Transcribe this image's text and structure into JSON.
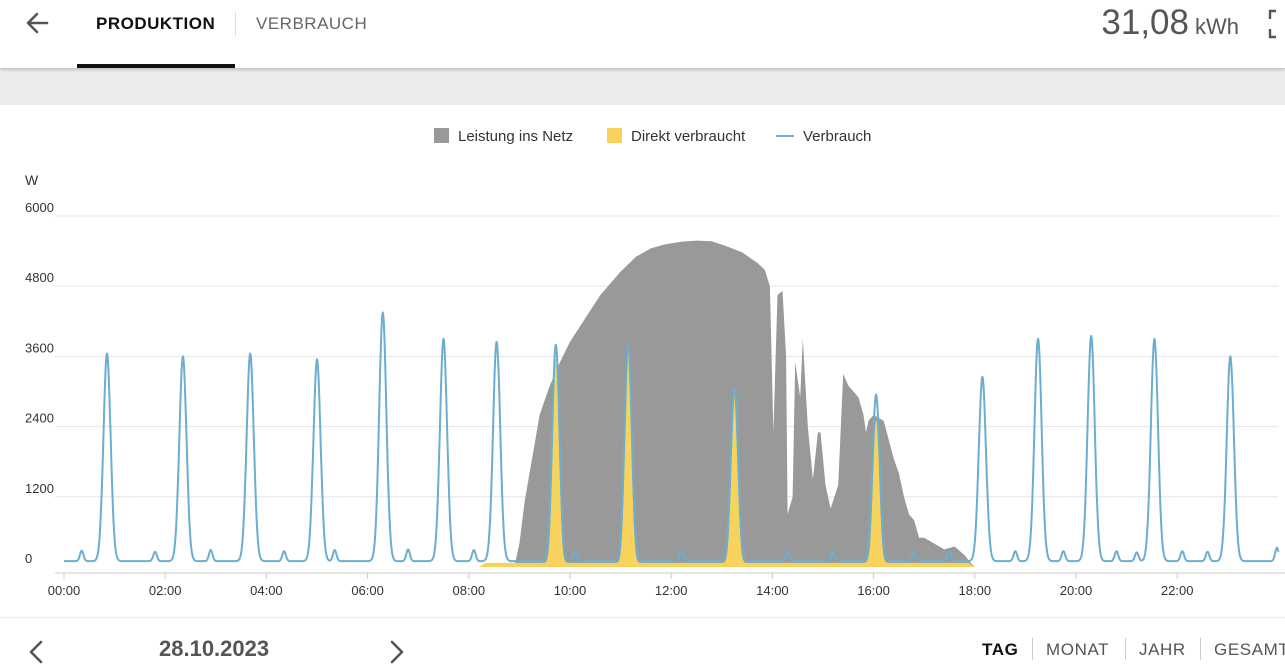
{
  "header": {
    "tabs": [
      {
        "label": "PRODUKTION",
        "active": true
      },
      {
        "label": "VERBRAUCH",
        "active": false
      }
    ],
    "total_value": "31,08",
    "total_unit": "kWh",
    "back_icon": "arrow-left-icon",
    "expand_icon": "fullscreen-icon"
  },
  "legend": [
    {
      "label": "Leistung ins Netz",
      "color": "#999999"
    },
    {
      "label": "Direkt verbraucht",
      "color": "#f7d35e"
    },
    {
      "label": "Verbrauch",
      "color": "#6baed0"
    }
  ],
  "chart_data": {
    "type": "area",
    "ylabel": "W",
    "yticks": [
      "0",
      "1200",
      "2400",
      "3600",
      "4800",
      "6000"
    ],
    "ylim": [
      0,
      6000
    ],
    "xticks": [
      "00:00",
      "02:00",
      "04:00",
      "06:00",
      "08:00",
      "10:00",
      "12:00",
      "14:00",
      "16:00",
      "18:00",
      "20:00",
      "22:00"
    ],
    "xlim_hours": [
      0,
      24
    ],
    "grid": true,
    "legend_position": "top",
    "series": [
      {
        "name": "Leistung ins Netz",
        "kind": "area",
        "color": "#999999",
        "points": [
          [
            8.9,
            0
          ],
          [
            9.0,
            400
          ],
          [
            9.1,
            1100
          ],
          [
            9.2,
            1600
          ],
          [
            9.3,
            2100
          ],
          [
            9.4,
            2600
          ],
          [
            9.6,
            3100
          ],
          [
            9.8,
            3500
          ],
          [
            10.0,
            3850
          ],
          [
            10.3,
            4250
          ],
          [
            10.6,
            4650
          ],
          [
            11.0,
            5050
          ],
          [
            11.3,
            5300
          ],
          [
            11.6,
            5450
          ],
          [
            11.9,
            5520
          ],
          [
            12.2,
            5560
          ],
          [
            12.5,
            5580
          ],
          [
            12.8,
            5570
          ],
          [
            13.1,
            5480
          ],
          [
            13.4,
            5380
          ],
          [
            13.7,
            5200
          ],
          [
            13.85,
            5080
          ],
          [
            13.95,
            4800
          ],
          [
            14.02,
            2300
          ],
          [
            14.1,
            4650
          ],
          [
            14.2,
            4720
          ],
          [
            14.27,
            3600
          ],
          [
            14.3,
            900
          ],
          [
            14.4,
            1200
          ],
          [
            14.45,
            3500
          ],
          [
            14.55,
            2900
          ],
          [
            14.6,
            3900
          ],
          [
            14.7,
            2400
          ],
          [
            14.8,
            1500
          ],
          [
            14.9,
            2300
          ],
          [
            14.95,
            2300
          ],
          [
            15.05,
            1400
          ],
          [
            15.15,
            1000
          ],
          [
            15.3,
            1400
          ],
          [
            15.4,
            3300
          ],
          [
            15.5,
            3100
          ],
          [
            15.6,
            3000
          ],
          [
            15.7,
            2900
          ],
          [
            15.8,
            2600
          ],
          [
            15.85,
            2300
          ],
          [
            15.9,
            2500
          ],
          [
            16.0,
            2600
          ],
          [
            16.2,
            2500
          ],
          [
            16.4,
            1850
          ],
          [
            16.5,
            1600
          ],
          [
            16.6,
            1200
          ],
          [
            16.7,
            900
          ],
          [
            16.8,
            800
          ],
          [
            16.9,
            500
          ],
          [
            17.0,
            500
          ],
          [
            17.2,
            400
          ],
          [
            17.4,
            300
          ],
          [
            17.6,
            350
          ],
          [
            17.8,
            200
          ],
          [
            17.9,
            90
          ],
          [
            18.0,
            0
          ]
        ]
      },
      {
        "name": "Direkt verbraucht",
        "kind": "area",
        "color": "#f7d35e",
        "baseline_w": 70,
        "baseline_range": [
          8.2,
          18.0
        ],
        "peaks": [
          [
            9.72,
            3500
          ],
          [
            11.15,
            3700
          ],
          [
            13.25,
            2900
          ],
          [
            16.05,
            2450
          ]
        ]
      },
      {
        "name": "Verbrauch",
        "kind": "line",
        "color": "#6baed0",
        "baseline_w": 100,
        "peaks": [
          [
            0.85,
            3550
          ],
          [
            2.35,
            3500
          ],
          [
            3.68,
            3550
          ],
          [
            5.0,
            3450
          ],
          [
            6.3,
            4250
          ],
          [
            7.5,
            3800
          ],
          [
            8.55,
            3750
          ],
          [
            9.72,
            3700
          ],
          [
            11.15,
            3700
          ],
          [
            13.25,
            2950
          ],
          [
            16.05,
            2850
          ],
          [
            18.15,
            3150
          ],
          [
            19.25,
            3800
          ],
          [
            20.3,
            3850
          ],
          [
            21.55,
            3800
          ],
          [
            23.05,
            3500
          ]
        ],
        "bumps": [
          [
            0.35,
            180
          ],
          [
            1.8,
            160
          ],
          [
            2.9,
            190
          ],
          [
            4.35,
            170
          ],
          [
            5.35,
            190
          ],
          [
            6.8,
            200
          ],
          [
            8.1,
            190
          ],
          [
            10.1,
            170
          ],
          [
            12.2,
            180
          ],
          [
            14.3,
            170
          ],
          [
            15.2,
            150
          ],
          [
            16.8,
            160
          ],
          [
            17.5,
            180
          ],
          [
            18.8,
            170
          ],
          [
            19.75,
            170
          ],
          [
            20.8,
            170
          ],
          [
            21.2,
            150
          ],
          [
            22.1,
            170
          ],
          [
            22.6,
            160
          ],
          [
            23.97,
            230
          ]
        ]
      }
    ]
  },
  "footer": {
    "date": "28.10.2023",
    "prev_icon": "chevron-left-icon",
    "next_icon": "chevron-right-icon",
    "periods": [
      {
        "label": "TAG",
        "active": true
      },
      {
        "label": "MONAT",
        "active": false
      },
      {
        "label": "JAHR",
        "active": false
      },
      {
        "label": "GESAMT",
        "active": false
      }
    ]
  }
}
